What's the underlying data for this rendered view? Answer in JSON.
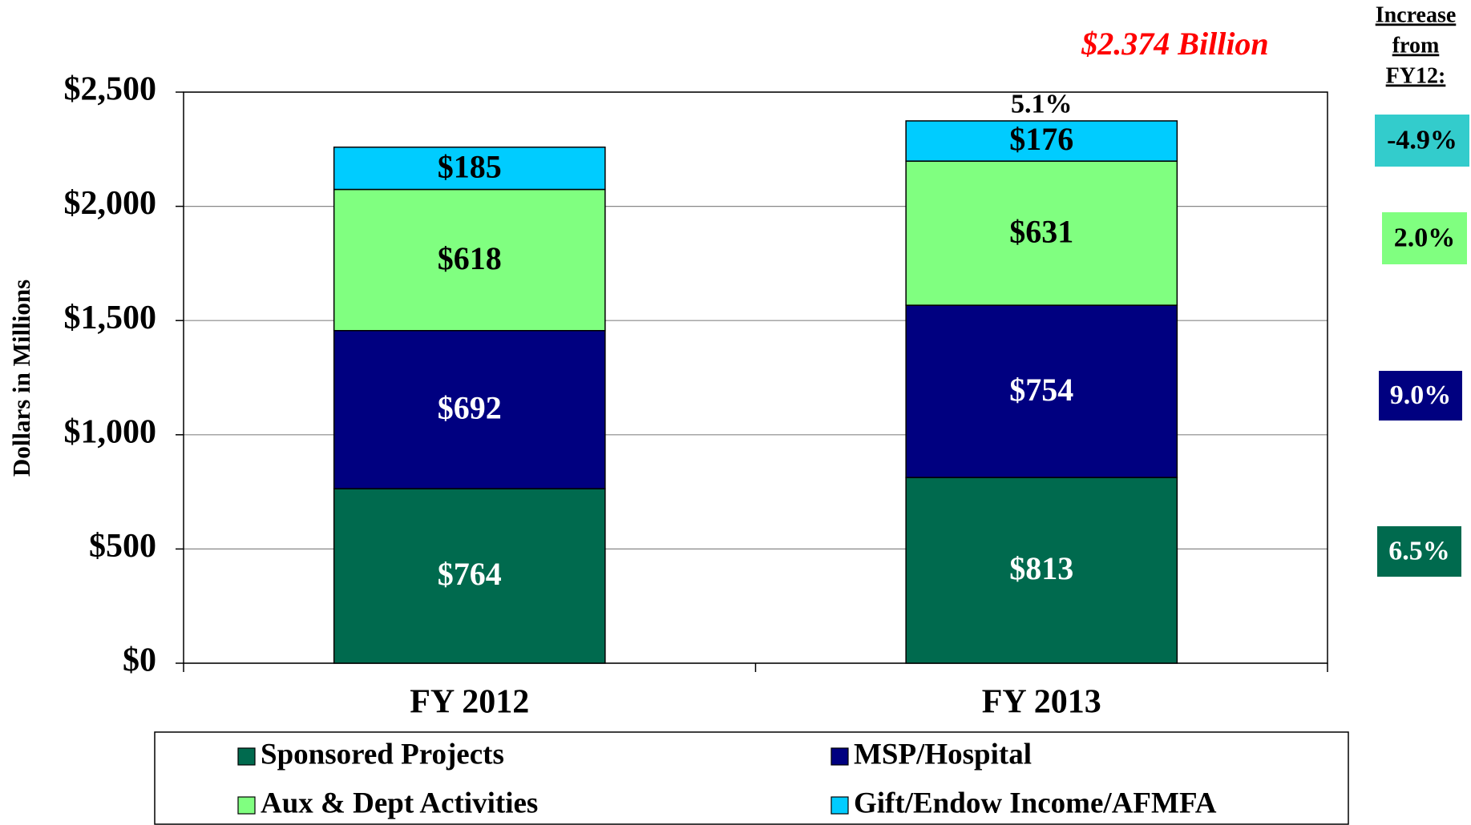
{
  "chart_data": {
    "type": "stacked_bar",
    "title": "$2.374 Billion",
    "ylabel": "Dollars in Millions",
    "categories": [
      "FY 2012",
      "FY 2013"
    ],
    "series": [
      {
        "name": "Sponsored Projects",
        "color": "#006a4e",
        "label_color": "#ffffff",
        "values": [
          764,
          813
        ],
        "value_labels": [
          "$764",
          "$813"
        ]
      },
      {
        "name": "MSP/Hospital",
        "color": "#000080",
        "label_color": "#ffffff",
        "values": [
          692,
          754
        ],
        "value_labels": [
          "$692",
          "$754"
        ]
      },
      {
        "name": "Aux & Dept Activities",
        "color": "#80ff80",
        "label_color": "#000000",
        "values": [
          618,
          631
        ],
        "value_labels": [
          "$618",
          "$631"
        ]
      },
      {
        "name": "Gift/Endow Income/AFMFA",
        "color": "#00ccff",
        "label_color": "#000000",
        "values": [
          185,
          176
        ],
        "value_labels": [
          "$185",
          "$176"
        ]
      }
    ],
    "ylim": [
      0,
      2500
    ],
    "yticks": [
      {
        "value": 0,
        "label": "$0"
      },
      {
        "value": 500,
        "label": "$500"
      },
      {
        "value": 1000,
        "label": "$1,000"
      },
      {
        "value": 1500,
        "label": "$1,500"
      },
      {
        "value": 2000,
        "label": "$2,000"
      },
      {
        "value": 2500,
        "label": "$2,500"
      }
    ],
    "grid": true,
    "total_annotation": "5.1%",
    "increase_header": [
      "Increase",
      "from",
      "FY12:"
    ],
    "increases": [
      {
        "text": "6.5%",
        "color": "#006a4e",
        "text_color": "#ffffff"
      },
      {
        "text": "9.0%",
        "color": "#000080",
        "text_color": "#ffffff"
      },
      {
        "text": "2.0%",
        "color": "#80ff80",
        "text_color": "#000000"
      },
      {
        "text": "-4.9%",
        "color": "#33cccc",
        "text_color": "#000000"
      }
    ]
  }
}
